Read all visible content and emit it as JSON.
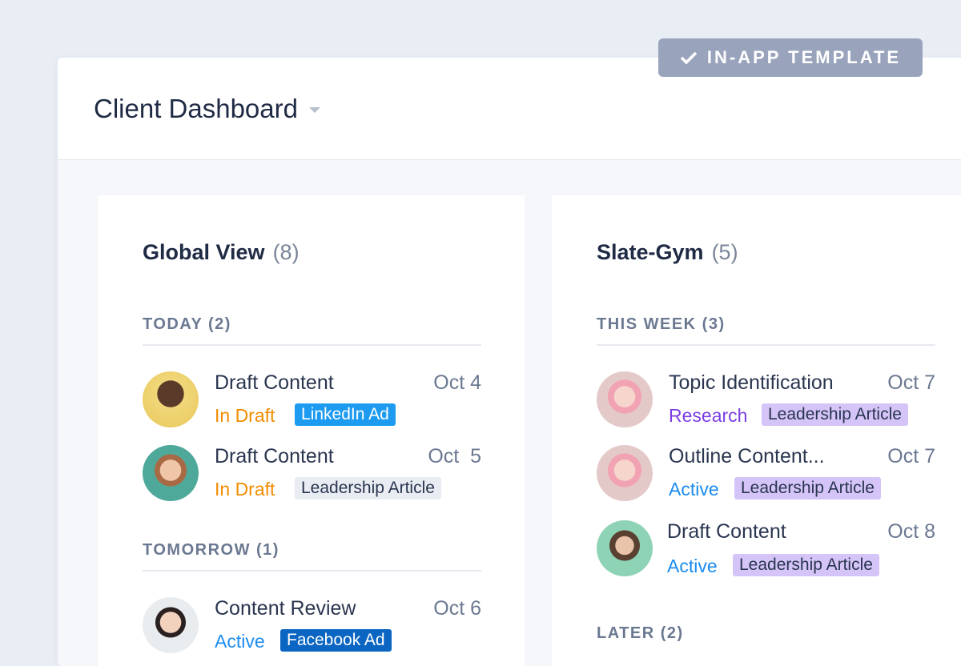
{
  "badge": {
    "icon": "check-icon",
    "label": "IN-APP TEMPLATE"
  },
  "header": {
    "title": "Client Dashboard"
  },
  "colors": {
    "in_draft": "#f28c00",
    "active": "#1a8cf0",
    "research": "#7b3fe4",
    "linkedin": "#1d9bf0",
    "facebook": "#0a66c2",
    "leadership_gray": "#e9ecf2",
    "leadership_purple": "#d4c4f7"
  },
  "columns": [
    {
      "title": "Global View",
      "count": "(8)",
      "sections": [
        {
          "label": "TODAY (2)",
          "items": [
            {
              "name": "Draft Content",
              "date": "Oct 4",
              "status": "In Draft",
              "tag": "LinkedIn Ad"
            },
            {
              "name": "Draft Content",
              "date": "Oct  5",
              "status": "In Draft",
              "tag": "Leadership Article"
            }
          ]
        },
        {
          "label": "TOMORROW (1)",
          "items": [
            {
              "name": "Content Review",
              "date": "Oct 6",
              "status": "Active",
              "tag": "Facebook Ad"
            }
          ]
        }
      ]
    },
    {
      "title": "Slate-Gym",
      "count": "(5)",
      "sections": [
        {
          "label": "THIS WEEK (3)",
          "items": [
            {
              "name": "Topic Identification",
              "date": "Oct 7",
              "status": "Research",
              "tag": "Leadership Article"
            },
            {
              "name": "Outline Content...",
              "date": "Oct 7",
              "status": "Active",
              "tag": "Leadership Article"
            },
            {
              "name": "Draft Content",
              "date": "Oct 8",
              "status": "Active",
              "tag": "Leadership Article"
            }
          ]
        },
        {
          "label": "LATER (2)",
          "items": []
        }
      ]
    }
  ]
}
